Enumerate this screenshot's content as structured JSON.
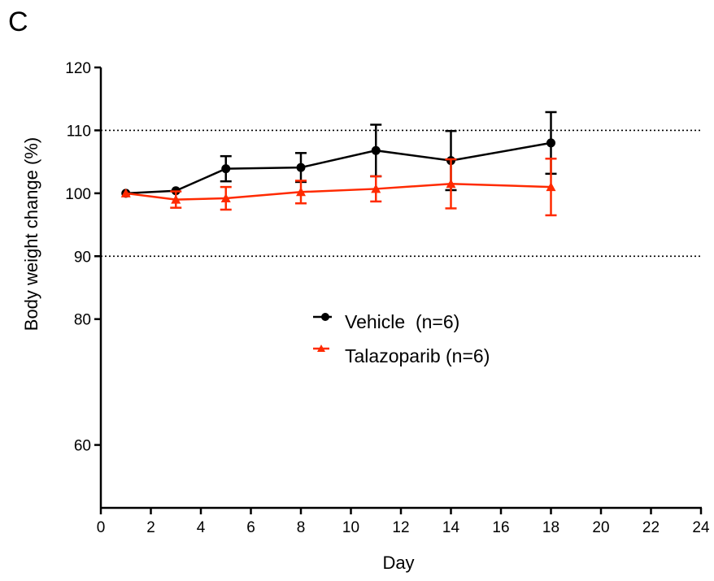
{
  "panel_label": "C",
  "chart_data": {
    "type": "line",
    "title": "",
    "xlabel": "Day",
    "ylabel": "Body weight change (%)",
    "xlim": [
      0,
      24
    ],
    "ylim": [
      50,
      120
    ],
    "xticks": [
      0,
      2,
      4,
      6,
      8,
      10,
      12,
      14,
      16,
      18,
      20,
      22,
      24
    ],
    "yticks": [
      60,
      80,
      90,
      100,
      110,
      120
    ],
    "reference_lines": [
      {
        "y": 110,
        "style": "dotted"
      },
      {
        "y": 90,
        "style": "dotted"
      }
    ],
    "legend_position": "center",
    "series": [
      {
        "name": "Vehicle  (n=6)",
        "color": "#000000",
        "marker": "circle",
        "x": [
          1,
          3,
          5,
          8,
          11,
          14,
          18
        ],
        "y": [
          100,
          100.4,
          103.9,
          104.1,
          106.8,
          105.2,
          108
        ],
        "err": [
          0,
          0,
          2,
          2.3,
          4.1,
          4.7,
          4.9
        ]
      },
      {
        "name": "Talazoparib (n=6)",
        "color": "#ff2a00",
        "marker": "triangle",
        "x": [
          1,
          3,
          5,
          8,
          11,
          14,
          18
        ],
        "y": [
          100,
          99,
          99.2,
          100.2,
          100.7,
          101.5,
          101
        ],
        "err": [
          0,
          1.3,
          1.8,
          1.8,
          2,
          3.9,
          4.5
        ]
      }
    ]
  }
}
